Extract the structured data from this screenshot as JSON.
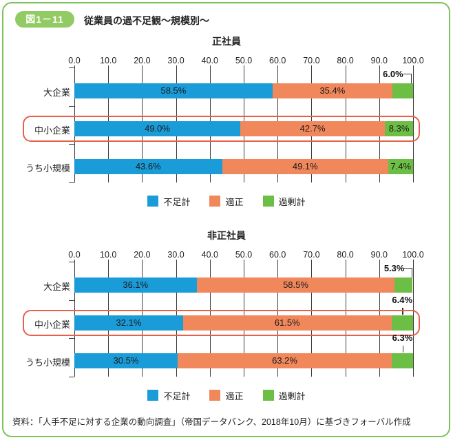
{
  "header": {
    "badge": "図1－11",
    "title": "従業員の過不足観～規模別～"
  },
  "colors": {
    "shortage_blue": "#1A9CD8",
    "appropriate_orange": "#F1885C",
    "surplus_green": "#6CBE45",
    "highlight_red": "#E6604A",
    "frame_green": "#7CC35C",
    "badge_green": "#92CA64"
  },
  "legend": {
    "items": [
      {
        "label": "不足計",
        "color": "#1A9CD8"
      },
      {
        "label": "適正",
        "color": "#F1885C"
      },
      {
        "label": "過剰計",
        "color": "#6CBE45"
      }
    ]
  },
  "source": "資料：「人手不足に対する企業の動向調査」（帝国データバンク、2018年10月）に基づきフォーバル作成",
  "chart_data": [
    {
      "type": "bar",
      "stacked": true,
      "orientation": "horizontal",
      "title": "正社員",
      "categories": [
        "大企業",
        "中小企業",
        "うち小規模"
      ],
      "series": [
        {
          "name": "不足計",
          "color": "#1A9CD8",
          "values": [
            58.5,
            49.0,
            43.6
          ]
        },
        {
          "name": "適正",
          "color": "#F1885C",
          "values": [
            35.4,
            42.7,
            49.1
          ]
        },
        {
          "name": "過剰計",
          "color": "#6CBE45",
          "values": [
            6.0,
            8.3,
            7.4
          ]
        }
      ],
      "xlim": [
        0,
        100
      ],
      "xticks": [
        "0.0",
        "10.0",
        "20.0",
        "30.0",
        "40.0",
        "50.0",
        "60.0",
        "70.0",
        "80.0",
        "90.0",
        "100.0"
      ],
      "grid": true,
      "legend_position": "bottom-center",
      "highlighted_category": "中小企業",
      "surplus_label_placement": [
        "elbow",
        "inside",
        "inside"
      ]
    },
    {
      "type": "bar",
      "stacked": true,
      "orientation": "horizontal",
      "title": "非正社員",
      "categories": [
        "大企業",
        "中小企業",
        "うち小規模"
      ],
      "series": [
        {
          "name": "不足計",
          "color": "#1A9CD8",
          "values": [
            36.1,
            32.1,
            30.5
          ]
        },
        {
          "name": "適正",
          "color": "#F1885C",
          "values": [
            58.5,
            61.5,
            63.2
          ]
        },
        {
          "name": "過剰計",
          "color": "#6CBE45",
          "values": [
            5.3,
            6.4,
            6.3
          ]
        }
      ],
      "xlim": [
        0,
        100
      ],
      "xticks": [
        "0.0",
        "10.0",
        "20.0",
        "30.0",
        "40.0",
        "50.0",
        "60.0",
        "70.0",
        "80.0",
        "90.0",
        "100.0"
      ],
      "grid": true,
      "legend_position": "bottom-center",
      "highlighted_category": "中小企業",
      "surplus_label_placement": [
        "elbow",
        "above",
        "above"
      ]
    }
  ]
}
